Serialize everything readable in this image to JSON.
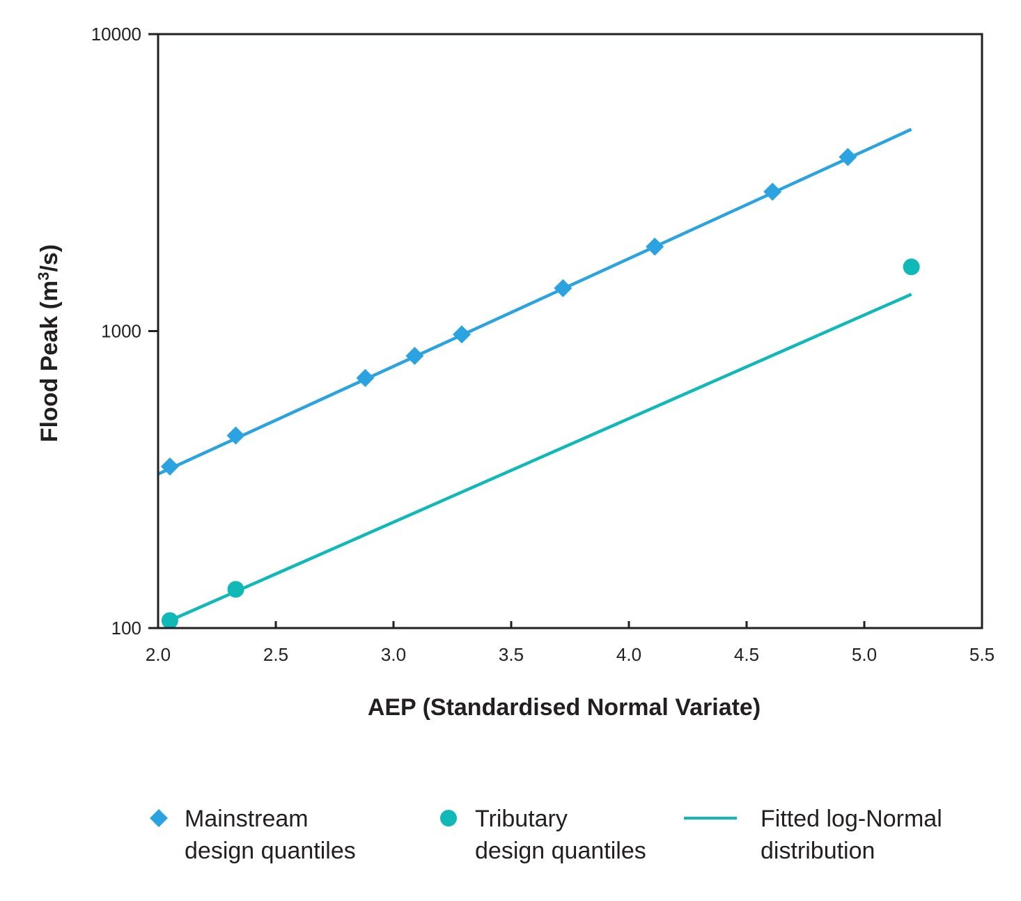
{
  "chart_data": {
    "type": "scatter",
    "xlabel": "AEP (Standardised Normal Variate)",
    "ylabel_main": "Flood Peak (m",
    "ylabel_sup": "3",
    "ylabel_end": "/s)",
    "xlim": [
      2.0,
      5.5
    ],
    "ylim": [
      100,
      10000
    ],
    "yscale": "log",
    "grid": false,
    "xticks": [
      "2.0",
      "2.5",
      "3.0",
      "3.5",
      "4.0",
      "4.5",
      "5.0",
      "5.5"
    ],
    "yticks": [
      "100",
      "1000",
      "10000"
    ],
    "series": [
      {
        "name_line1": "Mainstream",
        "name_line2": "design quantiles",
        "marker": "diamond",
        "color": "#2aa3e0",
        "x": [
          2.05,
          2.33,
          2.88,
          3.09,
          3.29,
          3.72,
          4.11,
          4.61,
          4.93
        ],
        "y": [
          350,
          445,
          695,
          825,
          975,
          1395,
          1925,
          2945,
          3855
        ]
      },
      {
        "name_line1": "Tributary",
        "name_line2": "design quantiles",
        "marker": "circle",
        "color": "#11b8b8",
        "x": [
          2.05,
          2.33,
          5.2
        ],
        "y": [
          106,
          135,
          1645
        ]
      }
    ],
    "fitted_lines": [
      {
        "color": "#2aa3e0",
        "x": [
          2.0,
          5.2
        ],
        "y": [
          330,
          4780
        ]
      },
      {
        "color": "#11b8b8",
        "x": [
          2.05,
          5.2
        ],
        "y": [
          106,
          1330
        ]
      }
    ],
    "fitted_legend_line1": "Fitted log-Normal",
    "fitted_legend_line2": "distribution",
    "fitted_legend_color": "#11b8b8",
    "legend_position": "bottom"
  }
}
